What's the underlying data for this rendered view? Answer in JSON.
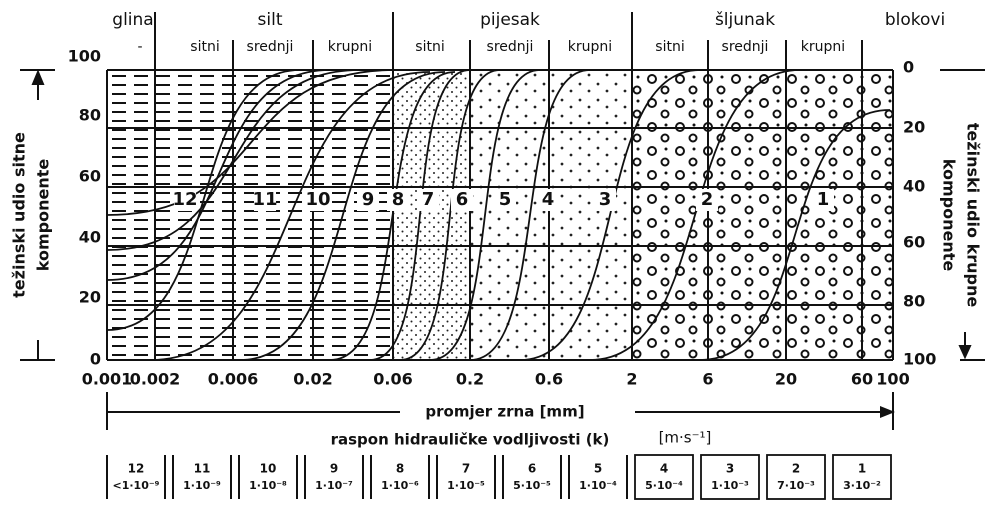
{
  "groups": [
    "glina",
    "silt",
    "pijesak",
    "šljunak",
    "blokovi"
  ],
  "subgroups": [
    "-",
    "sitni",
    "srednji",
    "krupni",
    "sitni",
    "srednji",
    "krupni",
    "sitni",
    "srednji",
    "krupni"
  ],
  "left_axis": {
    "title_lines": [
      "težinski udio sitne",
      "komponente"
    ],
    "ticks": [
      "100",
      "80",
      "60",
      "40",
      "20",
      "0"
    ]
  },
  "right_axis": {
    "title_lines": [
      "težinski udio krupne",
      "komponente"
    ],
    "ticks": [
      "0",
      "20",
      "40",
      "60",
      "80",
      "100"
    ]
  },
  "x_ticks": [
    "0.001",
    "0.002",
    "0.006",
    "0.02",
    "0.06",
    "0.2",
    "0.6",
    "2",
    "6",
    "20",
    "60",
    "100"
  ],
  "zones": [
    "12",
    "11",
    "10",
    "9",
    "8",
    "7",
    "6",
    "5",
    "4",
    "3",
    "2",
    "1"
  ],
  "x_title": "promjer zrna  [mm]",
  "k_title": "raspon hidrauličke vodljivosti (k)",
  "k_unit": "[m·s⁻¹]",
  "k_boxes": [
    {
      "zone": "12",
      "k": "<1·10⁻⁹"
    },
    {
      "zone": "11",
      "k": "1·10⁻⁹"
    },
    {
      "zone": "10",
      "k": "1·10⁻⁸"
    },
    {
      "zone": "9",
      "k": "1·10⁻⁷"
    },
    {
      "zone": "8",
      "k": "1·10⁻⁶"
    },
    {
      "zone": "7",
      "k": "1·10⁻⁵"
    },
    {
      "zone": "6",
      "k": "5·10⁻⁵"
    },
    {
      "zone": "5",
      "k": "1·10⁻⁴"
    },
    {
      "zone": "4",
      "k": "5·10⁻⁴"
    },
    {
      "zone": "3",
      "k": "1·10⁻³"
    },
    {
      "zone": "2",
      "k": "7·10⁻³"
    },
    {
      "zone": "1",
      "k": "3·10⁻²"
    }
  ]
}
